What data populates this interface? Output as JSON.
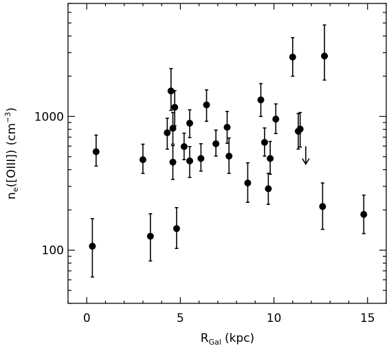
{
  "chart_data": {
    "type": "scatter",
    "title": "",
    "xlabel_main": "R",
    "xlabel_sub": "Gal",
    "xlabel_unit": "(kpc)",
    "ylabel_main": "n",
    "ylabel_sub": "e",
    "ylabel_species": "([OIII])",
    "ylabel_unit_open": "(cm",
    "ylabel_unit_exp": "−3",
    "ylabel_unit_close": ")",
    "xlim": [
      -1,
      16
    ],
    "ylim": [
      40,
      7000
    ],
    "yscale": "log",
    "x_ticks": [
      {
        "value": 0,
        "label": "0"
      },
      {
        "value": 5,
        "label": "5"
      },
      {
        "value": 10,
        "label": "10"
      },
      {
        "value": 15,
        "label": "15"
      }
    ],
    "y_ticks": [
      {
        "value": 100,
        "label": "100"
      },
      {
        "value": 1000,
        "label": "1000"
      }
    ],
    "points": [
      {
        "x": 0.3,
        "y": 107,
        "lo": 63,
        "hi": 172
      },
      {
        "x": 0.5,
        "y": 545,
        "lo": 425,
        "hi": 725
      },
      {
        "x": 3.0,
        "y": 475,
        "lo": 375,
        "hi": 620
      },
      {
        "x": 3.4,
        "y": 127,
        "lo": 83,
        "hi": 187
      },
      {
        "x": 4.3,
        "y": 755,
        "lo": 570,
        "hi": 970
      },
      {
        "x": 4.5,
        "y": 1550,
        "lo": 1110,
        "hi": 2280
      },
      {
        "x": 4.6,
        "y": 815,
        "lo": 620,
        "hi": 1070
      },
      {
        "x": 4.6,
        "y": 455,
        "lo": 338,
        "hi": 605
      },
      {
        "x": 4.7,
        "y": 1170,
        "lo": 850,
        "hi": 1560
      },
      {
        "x": 4.8,
        "y": 145,
        "lo": 103,
        "hi": 208
      },
      {
        "x": 5.2,
        "y": 595,
        "lo": 475,
        "hi": 750
      },
      {
        "x": 5.5,
        "y": 890,
        "lo": 695,
        "hi": 1120
      },
      {
        "x": 5.5,
        "y": 465,
        "lo": 350,
        "hi": 595
      },
      {
        "x": 6.1,
        "y": 485,
        "lo": 390,
        "hi": 625
      },
      {
        "x": 6.4,
        "y": 1220,
        "lo": 920,
        "hi": 1580
      },
      {
        "x": 6.9,
        "y": 625,
        "lo": 505,
        "hi": 790
      },
      {
        "x": 7.5,
        "y": 830,
        "lo": 630,
        "hi": 1090
      },
      {
        "x": 7.6,
        "y": 505,
        "lo": 375,
        "hi": 690
      },
      {
        "x": 8.6,
        "y": 318,
        "lo": 228,
        "hi": 450
      },
      {
        "x": 9.3,
        "y": 1330,
        "lo": 1000,
        "hi": 1760
      },
      {
        "x": 9.5,
        "y": 640,
        "lo": 505,
        "hi": 820
      },
      {
        "x": 9.7,
        "y": 288,
        "lo": 220,
        "hi": 375
      },
      {
        "x": 9.8,
        "y": 485,
        "lo": 370,
        "hi": 650
      },
      {
        "x": 10.1,
        "y": 955,
        "lo": 745,
        "hi": 1240
      },
      {
        "x": 11.0,
        "y": 2780,
        "lo": 2000,
        "hi": 3880
      },
      {
        "x": 11.3,
        "y": 775,
        "lo": 570,
        "hi": 1050
      },
      {
        "x": 11.4,
        "y": 805,
        "lo": 590,
        "hi": 1070
      },
      {
        "x": 12.6,
        "y": 212,
        "lo": 143,
        "hi": 318
      },
      {
        "x": 12.7,
        "y": 2830,
        "lo": 1870,
        "hi": 4830
      },
      {
        "x": 14.8,
        "y": 185,
        "lo": 133,
        "hi": 258
      }
    ],
    "upper_limits": [
      {
        "x": 11.7,
        "y": 440
      }
    ]
  }
}
